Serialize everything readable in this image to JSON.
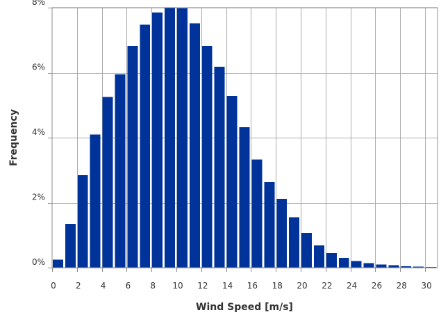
{
  "chart_data": {
    "type": "bar",
    "xlabel": "Wind Speed [m/s]",
    "ylabel": "Frequency",
    "ylim": [
      0,
      8
    ],
    "xlim": [
      0,
      31
    ],
    "grid": true,
    "x": [
      0,
      1,
      2,
      3,
      4,
      5,
      6,
      7,
      8,
      9,
      10,
      11,
      12,
      13,
      14,
      15,
      16,
      17,
      18,
      19,
      20,
      21,
      22,
      23,
      24,
      25,
      26,
      27,
      28,
      29,
      30
    ],
    "values": [
      0.25,
      1.35,
      2.85,
      4.1,
      5.25,
      5.95,
      6.82,
      7.48,
      7.85,
      8.0,
      7.98,
      7.52,
      6.82,
      6.18,
      5.28,
      4.32,
      3.33,
      2.63,
      2.12,
      1.55,
      1.07,
      0.68,
      0.45,
      0.3,
      0.2,
      0.14,
      0.1,
      0.07,
      0.04,
      0.03,
      0.02
    ],
    "x_ticks": [
      0,
      2,
      4,
      6,
      8,
      10,
      12,
      14,
      16,
      18,
      20,
      22,
      24,
      26,
      28,
      30
    ],
    "x_tick_labels": [
      "0",
      "2",
      "4",
      "6",
      "8",
      "10",
      "12",
      "14",
      "16",
      "18",
      "20",
      "22",
      "24",
      "26",
      "28",
      "30"
    ],
    "y_ticks": [
      0,
      2,
      4,
      6,
      8
    ],
    "y_tick_labels": [
      "0%",
      "2%",
      "4%",
      "6%",
      "8%"
    ],
    "colors": {
      "bar": "#003399"
    }
  }
}
